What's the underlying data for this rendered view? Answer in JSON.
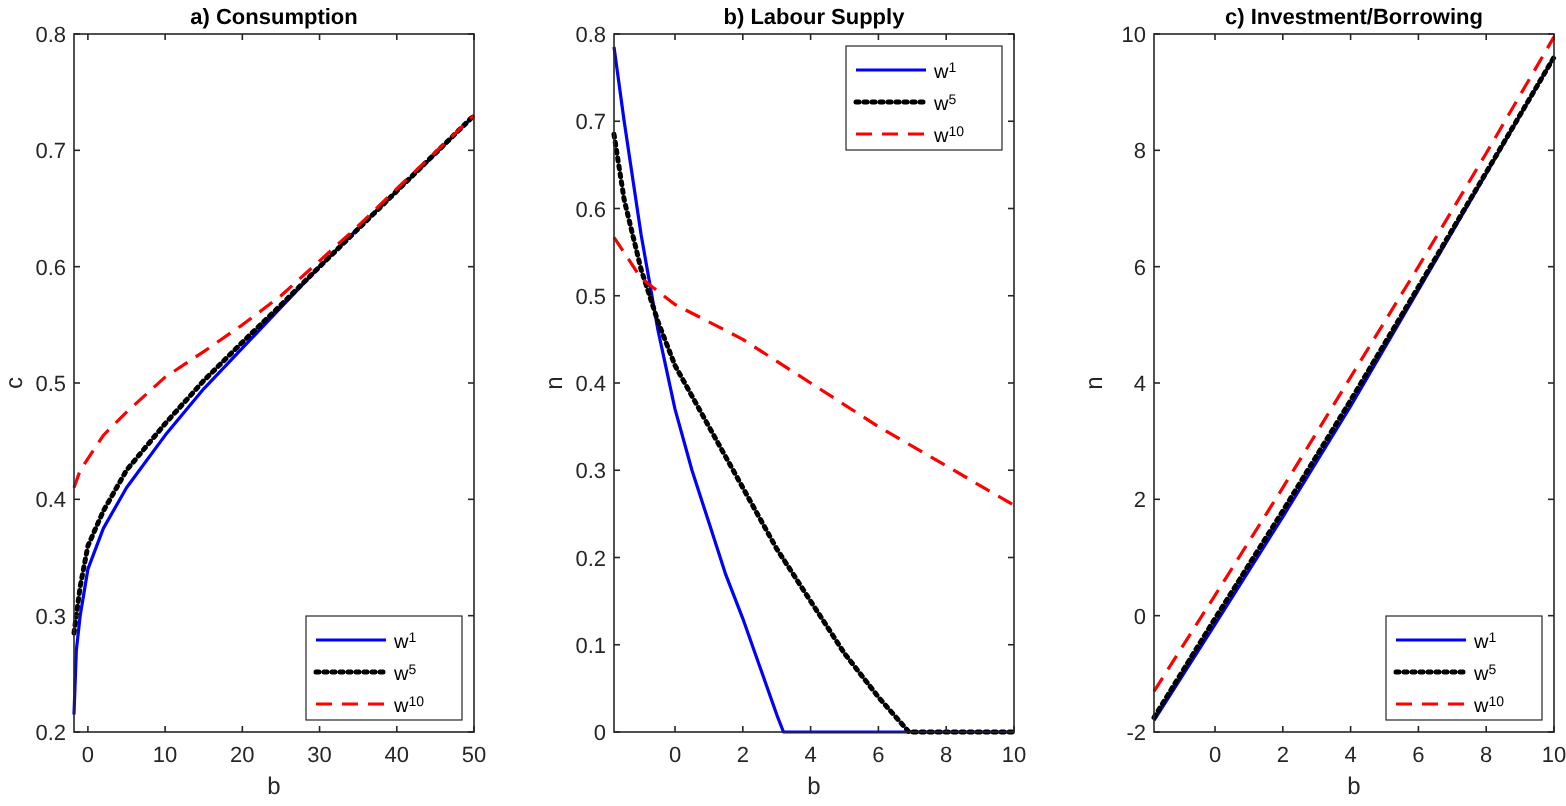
{
  "chart_data": [
    {
      "type": "line",
      "title": "a) Consumption",
      "xlabel": "b",
      "ylabel": "c",
      "xlim": [
        -1.8,
        50
      ],
      "ylim": [
        0.2,
        0.8
      ],
      "xticks": [
        0,
        10,
        20,
        30,
        40,
        50
      ],
      "yticks": [
        0.2,
        0.3,
        0.4,
        0.5,
        0.6,
        0.7,
        0.8
      ],
      "grid": false,
      "legend": "bottom right",
      "series": [
        {
          "name": "w$^{1}$",
          "color": "#0000ff",
          "line_style": "solid",
          "x": [
            -1.8,
            -1.5,
            -1,
            0,
            2,
            5,
            10,
            15,
            20,
            25,
            30,
            35,
            40,
            45,
            50
          ],
          "values": [
            0.215,
            0.27,
            0.3,
            0.34,
            0.375,
            0.41,
            0.455,
            0.495,
            0.53,
            0.565,
            0.6,
            0.633,
            0.665,
            0.697,
            0.73
          ]
        },
        {
          "name": "w$^{5}$",
          "color": "#000000",
          "line_style": "dotted",
          "x": [
            -1.8,
            -1,
            0,
            2,
            5,
            10,
            15,
            20,
            25,
            30,
            40,
            50
          ],
          "values": [
            0.285,
            0.325,
            0.36,
            0.39,
            0.425,
            0.465,
            0.502,
            0.535,
            0.567,
            0.6,
            0.665,
            0.73
          ]
        },
        {
          "name": "w$^{10}$",
          "color": "#ff0000",
          "line_style": "dashed",
          "x": [
            -1.8,
            -1,
            0,
            2,
            5,
            10,
            15,
            20,
            25,
            30,
            35,
            40,
            50
          ],
          "values": [
            0.41,
            0.425,
            0.435,
            0.455,
            0.475,
            0.505,
            0.527,
            0.55,
            0.575,
            0.605,
            0.635,
            0.667,
            0.73
          ]
        }
      ]
    },
    {
      "type": "line",
      "title": "b) Labour Supply",
      "xlabel": "b",
      "ylabel": "n",
      "xlim": [
        -1.8,
        10
      ],
      "ylim": [
        0,
        0.8
      ],
      "xticks": [
        0,
        2,
        4,
        6,
        8,
        10
      ],
      "yticks": [
        0,
        0.1,
        0.2,
        0.3,
        0.4,
        0.5,
        0.6,
        0.7,
        0.8
      ],
      "grid": false,
      "legend": "top right",
      "series": [
        {
          "name": "w$^{1}$",
          "color": "#0000ff",
          "line_style": "solid",
          "x": [
            -1.8,
            -1.5,
            -1,
            -0.5,
            0,
            0.5,
            1,
            1.5,
            2,
            2.5,
            3,
            3.2,
            10
          ],
          "values": [
            0.785,
            0.7,
            0.57,
            0.46,
            0.37,
            0.3,
            0.24,
            0.18,
            0.13,
            0.075,
            0.02,
            0,
            0
          ]
        },
        {
          "name": "w$^{5}$",
          "color": "#000000",
          "line_style": "dotted",
          "x": [
            -1.8,
            -1.5,
            -1,
            -0.5,
            0,
            1,
            2,
            3,
            4,
            5,
            6,
            6.9,
            10
          ],
          "values": [
            0.685,
            0.61,
            0.53,
            0.47,
            0.42,
            0.35,
            0.28,
            0.21,
            0.15,
            0.09,
            0.04,
            0,
            0
          ]
        },
        {
          "name": "w$^{10}$",
          "color": "#ff0000",
          "line_style": "dashed",
          "x": [
            -1.8,
            -1,
            0,
            2,
            4,
            6,
            8,
            10
          ],
          "values": [
            0.567,
            0.52,
            0.49,
            0.45,
            0.4,
            0.35,
            0.305,
            0.26
          ]
        }
      ]
    },
    {
      "type": "line",
      "title": "c) Investment/Borrowing",
      "xlabel": "b",
      "ylabel": "n",
      "xlim": [
        -1.8,
        10
      ],
      "ylim": [
        -2,
        10
      ],
      "xticks": [
        0,
        2,
        4,
        6,
        8,
        10
      ],
      "yticks": [
        -2,
        0,
        2,
        4,
        6,
        8,
        10
      ],
      "grid": false,
      "legend": "bottom right",
      "series": [
        {
          "name": "w$^{1}$",
          "color": "#0000ff",
          "line_style": "solid",
          "x": [
            -1.8,
            0,
            2,
            4,
            6,
            8,
            10
          ],
          "values": [
            -1.8,
            -0.15,
            1.7,
            3.6,
            5.6,
            7.6,
            9.6
          ]
        },
        {
          "name": "w$^{5}$",
          "color": "#000000",
          "line_style": "dotted",
          "x": [
            -1.8,
            0,
            2,
            4,
            6,
            8,
            10
          ],
          "values": [
            -1.75,
            -0.05,
            1.8,
            3.7,
            5.65,
            7.62,
            9.6
          ]
        },
        {
          "name": "w$^{10}$",
          "color": "#ff0000",
          "line_style": "dashed",
          "x": [
            -1.8,
            0,
            2,
            4,
            6,
            8,
            10
          ],
          "values": [
            -1.3,
            0.35,
            2.2,
            4.1,
            6,
            7.95,
            9.95
          ]
        }
      ]
    }
  ]
}
